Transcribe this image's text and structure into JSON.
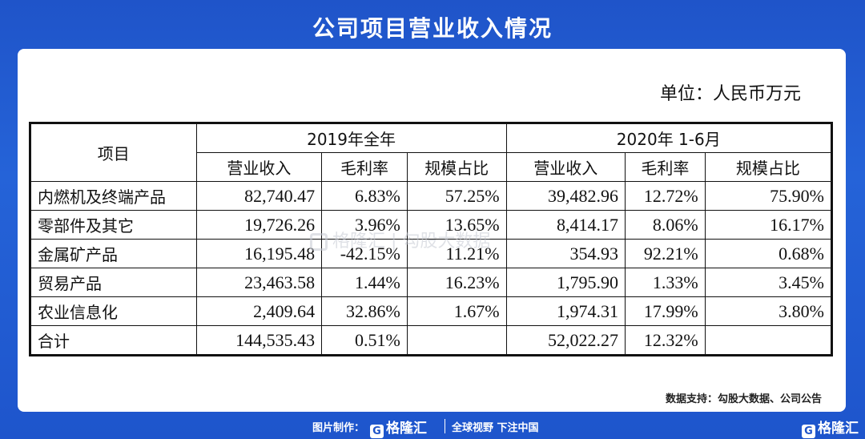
{
  "title": "公司项目营业收入情况",
  "unit": "单位：人民币万元",
  "table": {
    "item_header": "项目",
    "period1": "2019年全年",
    "period2": "2020年 1-6月",
    "col_revenue": "营业收入",
    "col_margin": "毛利率",
    "col_share": "规模占比",
    "rows": [
      {
        "name": "内燃机及终端产品",
        "r19": "82,740.47",
        "m19": "6.83%",
        "s19": "57.25%",
        "r20": "39,482.96",
        "m20": "12.72%",
        "s20": "75.90%"
      },
      {
        "name": "零部件及其它",
        "r19": "19,726.26",
        "m19": "3.96%",
        "s19": "13.65%",
        "r20": "8,414.17",
        "m20": "8.06%",
        "s20": "16.17%"
      },
      {
        "name": "金属矿产品",
        "r19": "16,195.48",
        "m19": "-42.15%",
        "s19": "11.21%",
        "r20": "354.93",
        "m20": "92.21%",
        "s20": "0.68%"
      },
      {
        "name": "贸易产品",
        "r19": "23,463.58",
        "m19": "1.44%",
        "s19": "16.23%",
        "r20": "1,795.90",
        "m20": "1.33%",
        "s20": "3.45%"
      },
      {
        "name": "农业信息化",
        "r19": "2,409.64",
        "m19": "32.86%",
        "s19": "1.67%",
        "r20": "1,974.31",
        "m20": "17.99%",
        "s20": "3.80%"
      },
      {
        "name": "合计",
        "r19": "144,535.43",
        "m19": "0.51%",
        "s19": "",
        "r20": "52,022.27",
        "m20": "12.32%",
        "s20": ""
      }
    ]
  },
  "watermark": "格隆汇 | 勾股大数据",
  "source": "数据支持：勾股大数据、公司公告",
  "footer": {
    "made_by": "图片制作：",
    "logo_text": "格隆汇",
    "logo_mark": "G",
    "slogan": "全球视野 下注中国",
    "corner_logo": "格隆汇",
    "corner_mark": "G"
  }
}
